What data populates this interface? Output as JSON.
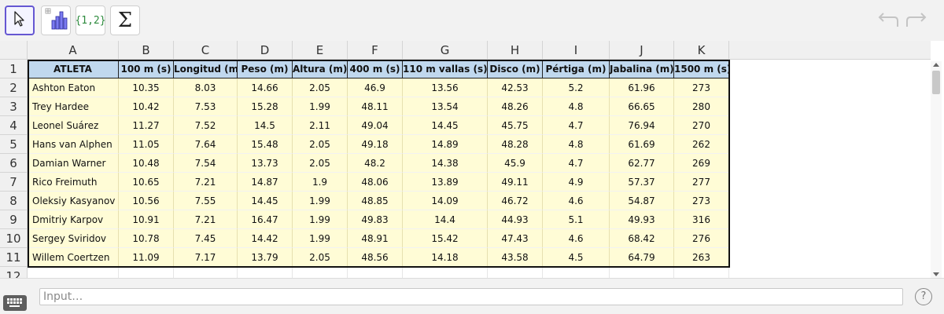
{
  "toolbar": {
    "tools": [
      {
        "name": "move-tool",
        "icon": "arrow-cursor-icon",
        "selected": true
      },
      {
        "name": "statistics-tool",
        "icon": "bar-chart-icon",
        "selected": false
      },
      {
        "name": "list-tool",
        "label": "{1,2}",
        "selected": false
      },
      {
        "name": "sum-tool",
        "label": "Σ",
        "selected": false
      }
    ],
    "undo_icon": "undo-icon",
    "redo_icon": "redo-icon"
  },
  "spreadsheet": {
    "columns": [
      "A",
      "B",
      "C",
      "D",
      "E",
      "F",
      "G",
      "H",
      "I",
      "J",
      "K"
    ],
    "rows": [
      "1",
      "2",
      "3",
      "4",
      "5",
      "6",
      "7",
      "8",
      "9",
      "10",
      "11",
      "12"
    ],
    "header_cells": [
      "ATLETA",
      "100 m (s)",
      "Longitud (m",
      "Peso (m)",
      "Altura (m)",
      "400 m (s)",
      "110 m vallas (s)",
      "Disco (m)",
      "Pértiga (m)",
      "Jabalina (m)",
      "1500 m (s)"
    ],
    "data_rows": [
      [
        "Ashton Eaton",
        "10.35",
        "8.03",
        "14.66",
        "2.05",
        "46.9",
        "13.56",
        "42.53",
        "5.2",
        "61.96",
        "273"
      ],
      [
        "Trey Hardee",
        "10.42",
        "7.53",
        "15.28",
        "1.99",
        "48.11",
        "13.54",
        "48.26",
        "4.8",
        "66.65",
        "280"
      ],
      [
        "Leonel Suárez",
        "11.27",
        "7.52",
        "14.5",
        "2.11",
        "49.04",
        "14.45",
        "45.75",
        "4.7",
        "76.94",
        "270"
      ],
      [
        "Hans van Alphen",
        "11.05",
        "7.64",
        "15.48",
        "2.05",
        "49.18",
        "14.89",
        "48.28",
        "4.8",
        "61.69",
        "262"
      ],
      [
        "Damian Warner",
        "10.48",
        "7.54",
        "13.73",
        "2.05",
        "48.2",
        "14.38",
        "45.9",
        "4.7",
        "62.77",
        "269"
      ],
      [
        "Rico Freimuth",
        "10.65",
        "7.21",
        "14.87",
        "1.9",
        "48.06",
        "13.89",
        "49.11",
        "4.9",
        "57.37",
        "277"
      ],
      [
        "Oleksiy Kasyanov",
        "10.56",
        "7.55",
        "14.45",
        "1.99",
        "48.85",
        "14.09",
        "46.72",
        "4.6",
        "54.87",
        "273"
      ],
      [
        "Dmitriy Karpov",
        "10.91",
        "7.21",
        "16.47",
        "1.99",
        "49.83",
        "14.4",
        "44.93",
        "5.1",
        "49.93",
        "316"
      ],
      [
        "Sergey Sviridov",
        "10.78",
        "7.45",
        "14.42",
        "1.99",
        "48.91",
        "15.42",
        "47.43",
        "4.6",
        "68.42",
        "276"
      ],
      [
        "Willem Coertzen",
        "11.09",
        "7.17",
        "13.79",
        "2.05",
        "48.56",
        "14.18",
        "43.58",
        "4.5",
        "64.79",
        "263"
      ]
    ]
  },
  "input_bar": {
    "placeholder": "Input…",
    "keyboard_icon": "keyboard-icon",
    "help_label": "?"
  },
  "colors": {
    "header_fill": "#c0d8ee",
    "cell_fill": "#fffcd6",
    "selected_tool_border": "#6557d2",
    "list_tool_text": "#2e8b3e"
  }
}
